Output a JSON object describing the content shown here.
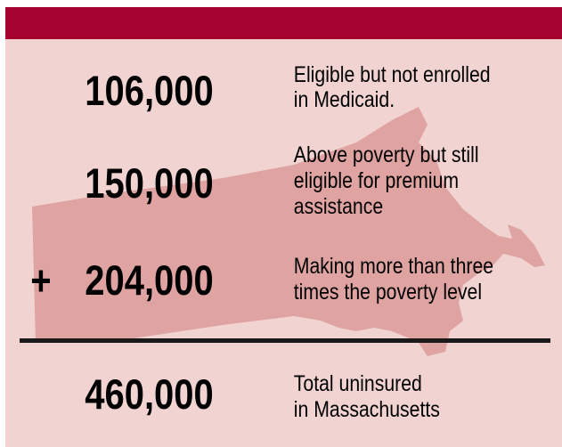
{
  "rows": [
    {
      "number": "106,000",
      "description": [
        "Eligible but not enrolled",
        "in Medicaid."
      ]
    },
    {
      "number": "150,000",
      "description": [
        "Above poverty but still",
        "eligible for premium",
        "assistance"
      ]
    },
    {
      "operator": "+",
      "number": "204,000",
      "description": [
        "Making more than three",
        "times the poverty level"
      ]
    }
  ],
  "total": {
    "number": "460,000",
    "description": [
      "Total uninsured",
      "in Massachusetts"
    ]
  }
}
